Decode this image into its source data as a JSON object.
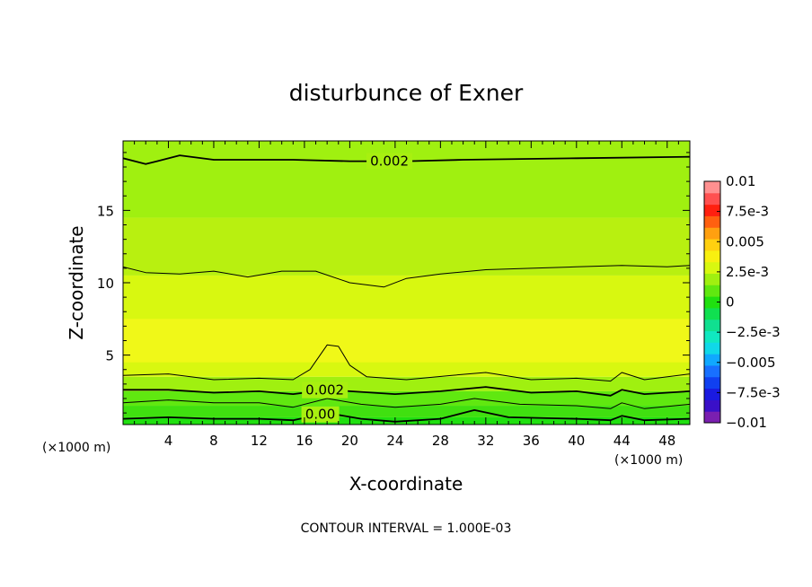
{
  "chart_data": {
    "type": "heatmap",
    "subtype": "filled-contour",
    "title": "disturbunce of Exner",
    "xlabel": "X-coordinate",
    "ylabel": "Z-coordinate",
    "x_unit_label": "(×1000 m)",
    "y_unit_label": "(×1000 m)",
    "xlim": [
      0,
      50
    ],
    "ylim": [
      0.2,
      19.8
    ],
    "x_ticks": [
      4,
      8,
      12,
      16,
      20,
      24,
      28,
      32,
      36,
      40,
      44,
      48
    ],
    "y_ticks": [
      5,
      10,
      15
    ],
    "footer": "CONTOUR INTERVAL = 1.000E-03",
    "colorbar": {
      "tick_labels": [
        "0.01",
        "7.5e-3",
        "0.005",
        "2.5e-3",
        "0",
        "−2.5e-3",
        "−0.005",
        "−7.5e-3",
        "−0.01"
      ],
      "levels": [
        -0.01,
        -0.009,
        -0.008,
        -0.007,
        -0.006,
        -0.005,
        -0.004,
        -0.003,
        -0.002,
        -0.001,
        0,
        0.001,
        0.002,
        0.003,
        0.004,
        0.005,
        0.006,
        0.007,
        0.008,
        0.009,
        0.01
      ],
      "colors": [
        "#7a1fb0",
        "#3a10c8",
        "#1a1ae0",
        "#1040f0",
        "#1870ff",
        "#10a8ff",
        "#10d8e8",
        "#10e8c0",
        "#10e090",
        "#10e050",
        "#20e010",
        "#60e810",
        "#a0f010",
        "#d8f810",
        "#f8f010",
        "#ffd010",
        "#ffa010",
        "#ff6010",
        "#ff2010",
        "#ff5050",
        "#ff9090"
      ]
    },
    "fill_bands": [
      {
        "z_bottom": 0.2,
        "z_top": 0.7,
        "color": "#20e010"
      },
      {
        "z_bottom": 0.7,
        "z_top": 1.5,
        "color": "#40e010"
      },
      {
        "z_bottom": 1.5,
        "z_top": 2.5,
        "color": "#60e810"
      },
      {
        "z_bottom": 2.5,
        "z_top": 3.5,
        "color": "#a0f010"
      },
      {
        "z_bottom": 3.5,
        "z_top": 10.5,
        "color": "#d8f810"
      },
      {
        "z_bottom": 4.5,
        "z_top": 7.5,
        "color": "#f0f818"
      },
      {
        "z_bottom": 10.5,
        "z_top": 14.5,
        "color": "#b8f010"
      },
      {
        "z_bottom": 14.5,
        "z_top": 19.8,
        "color": "#a0f010"
      }
    ],
    "contours": [
      {
        "level": 0.002,
        "label": "0.002",
        "label_x": 23.5,
        "thick": true,
        "points": [
          [
            0,
            18.6
          ],
          [
            2,
            18.2
          ],
          [
            3,
            18.4
          ],
          [
            5,
            18.8
          ],
          [
            8,
            18.5
          ],
          [
            15,
            18.5
          ],
          [
            20,
            18.4
          ],
          [
            25,
            18.4
          ],
          [
            30,
            18.5
          ],
          [
            40,
            18.6
          ],
          [
            50,
            18.7
          ]
        ]
      },
      {
        "level": 0.003,
        "label": "",
        "thick": false,
        "points": [
          [
            0,
            11.1
          ],
          [
            2,
            10.7
          ],
          [
            5,
            10.6
          ],
          [
            8,
            10.8
          ],
          [
            11,
            10.4
          ],
          [
            14,
            10.8
          ],
          [
            17,
            10.8
          ],
          [
            20,
            10.0
          ],
          [
            23,
            9.7
          ],
          [
            25,
            10.3
          ],
          [
            28,
            10.6
          ],
          [
            32,
            10.9
          ],
          [
            36,
            11.0
          ],
          [
            40,
            11.1
          ],
          [
            44,
            11.2
          ],
          [
            48,
            11.1
          ],
          [
            50,
            11.2
          ]
        ]
      },
      {
        "level": 0.003,
        "label": "",
        "thick": false,
        "points": [
          [
            0,
            3.6
          ],
          [
            4,
            3.7
          ],
          [
            8,
            3.3
          ],
          [
            12,
            3.4
          ],
          [
            15,
            3.3
          ],
          [
            16.5,
            4.0
          ],
          [
            18,
            5.7
          ],
          [
            19,
            5.6
          ],
          [
            20,
            4.3
          ],
          [
            21.5,
            3.5
          ],
          [
            25,
            3.3
          ],
          [
            29,
            3.6
          ],
          [
            32,
            3.8
          ],
          [
            36,
            3.3
          ],
          [
            40,
            3.4
          ],
          [
            43,
            3.2
          ],
          [
            44,
            3.8
          ],
          [
            46,
            3.3
          ],
          [
            50,
            3.7
          ]
        ]
      },
      {
        "level": 0.002,
        "label": "0.002",
        "label_x": 17.8,
        "thick": true,
        "points": [
          [
            0,
            2.6
          ],
          [
            4,
            2.6
          ],
          [
            8,
            2.4
          ],
          [
            12,
            2.5
          ],
          [
            15,
            2.3
          ],
          [
            18,
            2.6
          ],
          [
            20,
            2.5
          ],
          [
            24,
            2.3
          ],
          [
            28,
            2.5
          ],
          [
            32,
            2.8
          ],
          [
            36,
            2.4
          ],
          [
            40,
            2.5
          ],
          [
            43,
            2.2
          ],
          [
            44,
            2.6
          ],
          [
            46,
            2.3
          ],
          [
            50,
            2.5
          ]
        ]
      },
      {
        "level": 0.001,
        "label": "",
        "thick": false,
        "points": [
          [
            0,
            1.7
          ],
          [
            4,
            1.9
          ],
          [
            8,
            1.7
          ],
          [
            12,
            1.7
          ],
          [
            15,
            1.4
          ],
          [
            18,
            2.0
          ],
          [
            21,
            1.6
          ],
          [
            24,
            1.4
          ],
          [
            28,
            1.6
          ],
          [
            31,
            2.0
          ],
          [
            35,
            1.6
          ],
          [
            40,
            1.5
          ],
          [
            43,
            1.3
          ],
          [
            44,
            1.7
          ],
          [
            46,
            1.3
          ],
          [
            50,
            1.6
          ]
        ]
      },
      {
        "level": 0.0,
        "label": "0.00",
        "label_x": 17.4,
        "thick": true,
        "points": [
          [
            0,
            0.6
          ],
          [
            4,
            0.7
          ],
          [
            8,
            0.6
          ],
          [
            12,
            0.6
          ],
          [
            15,
            0.5
          ],
          [
            18,
            1.0
          ],
          [
            21,
            0.6
          ],
          [
            24,
            0.4
          ],
          [
            28,
            0.6
          ],
          [
            31,
            1.2
          ],
          [
            34,
            0.7
          ],
          [
            40,
            0.6
          ],
          [
            43,
            0.5
          ],
          [
            44,
            0.8
          ],
          [
            46,
            0.5
          ],
          [
            50,
            0.6
          ]
        ]
      }
    ]
  }
}
